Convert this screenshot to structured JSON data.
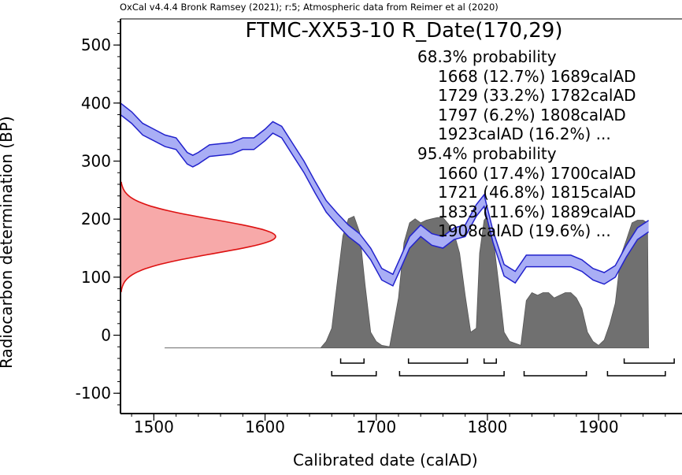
{
  "header": "OxCal v4.4.4 Bronk Ramsey (2021); r:5; Atmospheric data from Reimer et al (2020)",
  "title": "FTMC-XX53-10 R_Date(170,29)",
  "stats": {
    "p68_heading": "68.3% probability",
    "p68": [
      "1668 (12.7%) 1689calAD",
      "1729 (33.2%) 1782calAD",
      "1797 (6.2%) 1808calAD",
      "1923calAD (16.2%) ..."
    ],
    "p95_heading": "95.4% probability",
    "p95": [
      "1660 (17.4%) 1700calAD",
      "1721 (46.8%) 1815calAD",
      "1833 (11.6%) 1889calAD",
      "1908calAD (19.6%) ..."
    ]
  },
  "colors": {
    "curve_fill": "#a9aef5",
    "curve_line": "#2222cc",
    "radiocarbon_fill": "#f7a9a9",
    "radiocarbon_line": "#dd1111",
    "posterior_fill": "#707070"
  },
  "chart_data": {
    "type": "area",
    "xlabel": "Calibrated date (calAD)",
    "ylabel": "Radiocarbon determination (BP)",
    "xlim": [
      1470,
      1975
    ],
    "ylim": [
      -135,
      545
    ],
    "x_ticks": [
      1500,
      1600,
      1700,
      1800,
      1900
    ],
    "y_ticks": [
      -100,
      0,
      100,
      200,
      300,
      400,
      500
    ],
    "measurement": {
      "mean_bp": 170,
      "sigma_bp": 29
    },
    "calibration_curve": {
      "x": [
        1470,
        1480,
        1490,
        1500,
        1510,
        1520,
        1530,
        1535,
        1540,
        1550,
        1560,
        1570,
        1580,
        1590,
        1600,
        1607,
        1615,
        1625,
        1635,
        1645,
        1655,
        1665,
        1675,
        1685,
        1695,
        1705,
        1715,
        1722,
        1730,
        1740,
        1750,
        1760,
        1770,
        1780,
        1790,
        1797,
        1805,
        1815,
        1825,
        1835,
        1845,
        1855,
        1865,
        1875,
        1885,
        1895,
        1905,
        1915,
        1925,
        1935,
        1945
      ],
      "y": [
        390,
        375,
        355,
        345,
        335,
        330,
        305,
        300,
        305,
        318,
        320,
        322,
        330,
        330,
        345,
        358,
        350,
        320,
        290,
        255,
        222,
        200,
        180,
        165,
        140,
        105,
        95,
        125,
        160,
        180,
        165,
        160,
        175,
        180,
        215,
        232,
        170,
        112,
        100,
        128,
        128,
        128,
        128,
        128,
        120,
        105,
        98,
        110,
        145,
        175,
        188
      ],
      "sigma": [
        10,
        10,
        10,
        10,
        10,
        10,
        10,
        10,
        10,
        10,
        10,
        10,
        10,
        10,
        10,
        10,
        10,
        10,
        10,
        10,
        10,
        10,
        10,
        10,
        10,
        10,
        10,
        10,
        10,
        10,
        10,
        10,
        10,
        10,
        10,
        10,
        10,
        10,
        10,
        10,
        10,
        10,
        10,
        10,
        10,
        10,
        10,
        10,
        10,
        10,
        10
      ]
    },
    "posterior": {
      "x": [
        1510,
        1650,
        1655,
        1660,
        1665,
        1670,
        1675,
        1680,
        1685,
        1690,
        1695,
        1700,
        1705,
        1712,
        1720,
        1725,
        1730,
        1735,
        1740,
        1745,
        1750,
        1755,
        1760,
        1765,
        1770,
        1775,
        1780,
        1785,
        1790,
        1793,
        1797,
        1800,
        1805,
        1810,
        1815,
        1820,
        1830,
        1835,
        1840,
        1845,
        1850,
        1855,
        1860,
        1865,
        1870,
        1875,
        1880,
        1885,
        1890,
        1895,
        1900,
        1905,
        1910,
        1915,
        1920,
        1925,
        1930,
        1935,
        1940,
        1944,
        1945
      ],
      "density": [
        0,
        0,
        0.05,
        0.15,
        0.5,
        0.85,
        0.98,
        1.0,
        0.88,
        0.48,
        0.12,
        0.05,
        0.02,
        0.01,
        0.38,
        0.8,
        0.95,
        0.98,
        0.95,
        0.97,
        0.98,
        0.99,
        0.99,
        0.94,
        0.87,
        0.72,
        0.4,
        0.12,
        0.15,
        0.72,
        0.97,
        1.0,
        0.85,
        0.5,
        0.12,
        0.05,
        0.02,
        0.36,
        0.42,
        0.4,
        0.42,
        0.42,
        0.38,
        0.4,
        0.42,
        0.42,
        0.38,
        0.3,
        0.12,
        0.05,
        0.02,
        0.06,
        0.18,
        0.34,
        0.7,
        0.82,
        0.95,
        0.97,
        0.97,
        0.95,
        0
      ]
    },
    "ranges_68": [
      [
        1668,
        1689
      ],
      [
        1729,
        1782
      ],
      [
        1797,
        1808
      ],
      [
        1923,
        1968
      ]
    ],
    "ranges_95": [
      [
        1660,
        1700
      ],
      [
        1721,
        1815
      ],
      [
        1833,
        1889
      ],
      [
        1908,
        1960
      ]
    ]
  }
}
